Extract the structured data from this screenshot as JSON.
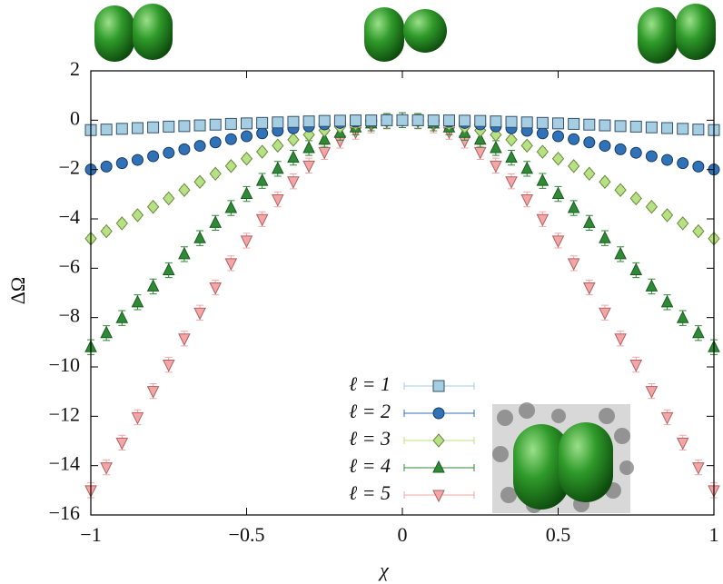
{
  "chart_data": {
    "type": "errorbar-scatter",
    "x_label": "χ",
    "y_label": "ΔΩ",
    "xlim": [
      -1,
      1
    ],
    "ylim": [
      -16,
      2
    ],
    "xticks": [
      {
        "value": -1,
        "label": "−1"
      },
      {
        "value": -0.5,
        "label": "−0.5"
      },
      0,
      0.5,
      1
    ],
    "yticks": [
      2,
      0,
      {
        "value": -2,
        "label": "−2"
      },
      {
        "value": -4,
        "label": "−4"
      },
      {
        "value": -6,
        "label": "−6"
      },
      {
        "value": -8,
        "label": "−8"
      },
      {
        "value": -10,
        "label": "−10"
      },
      {
        "value": -12,
        "label": "−12"
      },
      {
        "value": -14,
        "label": "−14"
      },
      {
        "value": -16,
        "label": "−16"
      }
    ],
    "x": [
      -1,
      -0.95,
      -0.9,
      -0.85,
      -0.8,
      -0.75,
      -0.7,
      -0.65,
      -0.6,
      -0.55,
      -0.5,
      -0.45,
      -0.4,
      -0.35,
      -0.3,
      -0.25,
      -0.2,
      -0.15,
      -0.1,
      -0.05,
      0,
      0.05,
      0.1,
      0.15,
      0.2,
      0.25,
      0.3,
      0.35,
      0.4,
      0.45,
      0.5,
      0.55,
      0.6,
      0.65,
      0.7,
      0.75,
      0.8,
      0.85,
      0.9,
      0.95,
      1
    ],
    "series": [
      {
        "name": "ℓ = 1",
        "marker": "square",
        "color": "#a6cee3",
        "edge": "#34506a",
        "error": 0.1,
        "values": [
          -0.4,
          -0.38,
          -0.35,
          -0.32,
          -0.29,
          -0.26,
          -0.24,
          -0.21,
          -0.18,
          -0.15,
          -0.13,
          -0.11,
          -0.09,
          -0.07,
          -0.05,
          -0.03,
          -0.02,
          -0.01,
          -0.01,
          0,
          0,
          0,
          -0.01,
          -0.01,
          -0.02,
          -0.03,
          -0.05,
          -0.07,
          -0.09,
          -0.11,
          -0.13,
          -0.15,
          -0.18,
          -0.21,
          -0.24,
          -0.26,
          -0.29,
          -0.32,
          -0.35,
          -0.38,
          -0.4
        ]
      },
      {
        "name": "ℓ = 2",
        "marker": "circle",
        "color": "#2f72b8",
        "edge": "#1a3a60",
        "error": 0.15,
        "values": [
          -2,
          -1.88,
          -1.74,
          -1.61,
          -1.46,
          -1.32,
          -1.18,
          -1.04,
          -0.9,
          -0.77,
          -0.65,
          -0.53,
          -0.43,
          -0.33,
          -0.25,
          -0.17,
          -0.11,
          -0.06,
          -0.03,
          -0.01,
          0,
          -0.01,
          -0.03,
          -0.06,
          -0.11,
          -0.17,
          -0.25,
          -0.33,
          -0.43,
          -0.53,
          -0.65,
          -0.77,
          -0.9,
          -1.04,
          -1.18,
          -1.32,
          -1.46,
          -1.61,
          -1.74,
          -1.88,
          -2
        ]
      },
      {
        "name": "ℓ = 3",
        "marker": "diamond",
        "color": "#b8e186",
        "edge": "#6a8a40",
        "error": 0.15,
        "values": [
          -4.8,
          -4.5,
          -4.18,
          -3.85,
          -3.51,
          -3.17,
          -2.83,
          -2.5,
          -2.17,
          -1.86,
          -1.56,
          -1.28,
          -1.03,
          -0.79,
          -0.59,
          -0.41,
          -0.27,
          -0.15,
          -0.07,
          -0.02,
          0,
          -0.02,
          -0.07,
          -0.15,
          -0.27,
          -0.41,
          -0.59,
          -0.79,
          -1.03,
          -1.28,
          -1.56,
          -1.86,
          -2.17,
          -2.5,
          -2.83,
          -3.17,
          -3.51,
          -3.85,
          -4.18,
          -4.5,
          -4.8
        ]
      },
      {
        "name": "ℓ = 4",
        "marker": "triangle-up",
        "color": "#2e8b35",
        "edge": "#1d5a22",
        "error": 0.3,
        "values": [
          -9.2,
          -8.63,
          -8.02,
          -7.38,
          -6.74,
          -6.08,
          -5.43,
          -4.78,
          -4.16,
          -3.56,
          -2.99,
          -2.46,
          -1.97,
          -1.52,
          -1.13,
          -0.79,
          -0.51,
          -0.29,
          -0.13,
          -0.03,
          0,
          -0.03,
          -0.13,
          -0.29,
          -0.51,
          -0.79,
          -1.13,
          -1.52,
          -1.97,
          -2.46,
          -2.99,
          -3.56,
          -4.16,
          -4.78,
          -5.43,
          -6.08,
          -6.74,
          -7.38,
          -8.02,
          -8.63,
          -9.2
        ]
      },
      {
        "name": "ℓ = 5",
        "marker": "triangle-down",
        "color": "#f4a6a6",
        "edge": "#b06060",
        "error": 0.3,
        "values": [
          -15,
          -14.07,
          -13.07,
          -12.04,
          -10.98,
          -9.91,
          -8.85,
          -7.8,
          -6.78,
          -5.8,
          -4.88,
          -4.01,
          -3.21,
          -2.48,
          -1.84,
          -1.29,
          -0.83,
          -0.47,
          -0.21,
          -0.05,
          0,
          -0.05,
          -0.21,
          -0.47,
          -0.83,
          -1.29,
          -1.84,
          -2.48,
          -3.21,
          -4.01,
          -4.88,
          -5.8,
          -6.78,
          -7.8,
          -8.85,
          -9.91,
          -10.98,
          -12.04,
          -13.07,
          -14.07,
          -15
        ]
      }
    ]
  }
}
